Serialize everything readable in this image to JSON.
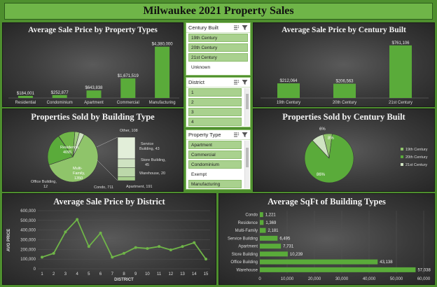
{
  "title": "Milwaukee 2021 Property Sales",
  "panels": {
    "p1_title": "Average Sale Price by Property Types",
    "p2_title": "Average Sale Price by Century Built",
    "p3_title": "Properties Sold by Building Type",
    "p4_title": "Properties Sold by Century Built",
    "p5_title": "Average Sale Price by District",
    "p6_title": "Average SqFt of Building Types"
  },
  "slicers": {
    "century": {
      "header": "Century Built",
      "items": [
        {
          "label": "19th Century",
          "selected": true
        },
        {
          "label": "20th Century",
          "selected": true
        },
        {
          "label": "21st Century",
          "selected": true
        },
        {
          "label": "Unknown",
          "selected": false
        }
      ]
    },
    "district": {
      "header": "District",
      "items": [
        {
          "label": "1",
          "selected": true
        },
        {
          "label": "2",
          "selected": true
        },
        {
          "label": "3",
          "selected": true
        },
        {
          "label": "4",
          "selected": true
        }
      ]
    },
    "property_type": {
      "header": "Property Type",
      "items": [
        {
          "label": "Apartment",
          "selected": true
        },
        {
          "label": "Commercial",
          "selected": true
        },
        {
          "label": "Condominium",
          "selected": true
        },
        {
          "label": "Exempt",
          "selected": false
        },
        {
          "label": "Manufacturing",
          "selected": true
        }
      ]
    }
  },
  "colors": {
    "accent": "#6fb548",
    "bar": "#5aab3a",
    "bar_light": "#a9d18e",
    "panel": "#3a3a3a",
    "text": "#f2f2f2"
  },
  "chart_data": [
    {
      "type": "bar",
      "title": "Average Sale Price by Property Types",
      "categories": [
        "Residential",
        "Condominium",
        "Apartment",
        "Commercial",
        "Manufacturing"
      ],
      "values": [
        184001,
        252877,
        643838,
        1671519,
        4380000
      ],
      "labels": [
        "$184,001",
        "$252,877",
        "$643,838",
        "$1,671,519",
        "$4,380,000"
      ]
    },
    {
      "type": "bar",
      "title": "Average Sale Price by Century Built",
      "categories": [
        "19th Century",
        "20th Century",
        "21st Century"
      ],
      "values": [
        212064,
        206563,
        761106
      ],
      "labels": [
        "$212,064",
        "$206,563",
        "$761,106"
      ]
    },
    {
      "type": "pie",
      "title": "Properties Sold by Building Type",
      "categories": [
        "Residence",
        "Multi-Family",
        "Office Building",
        "Condo",
        "Apartment",
        "Other",
        "Service Building",
        "Store Building",
        "Warehouse"
      ],
      "values": [
        4095,
        1350,
        12,
        711,
        191,
        108,
        43,
        45,
        20
      ],
      "labels": [
        "Residence, 4095",
        "Multi-Family, 1350",
        "Office Building, 12",
        "Condo, 711",
        "Apartment, 191",
        "Other, 108",
        "Service Building, 43",
        "Store Building, 45",
        "Warehouse, 20"
      ]
    },
    {
      "type": "pie",
      "title": "Properties Sold by Century Built",
      "categories": [
        "19th Century",
        "20th Century",
        "21st Century"
      ],
      "values": [
        6,
        86,
        8
      ],
      "labels": [
        "6%",
        "86%",
        "8%"
      ],
      "legend": "right"
    },
    {
      "type": "line",
      "title": "Average Sale Price by District",
      "x": [
        1,
        2,
        3,
        4,
        5,
        6,
        7,
        8,
        9,
        10,
        11,
        12,
        13,
        14,
        15
      ],
      "values": [
        120000,
        160000,
        380000,
        510000,
        230000,
        370000,
        120000,
        160000,
        220000,
        210000,
        230000,
        195000,
        230000,
        270000,
        100000
      ],
      "xlabel": "DISTRICT",
      "ylabel": "AVG PRICE",
      "ylim": [
        0,
        600000
      ],
      "yticks": [
        "0",
        "100,000",
        "200,000",
        "300,000",
        "400,000",
        "500,000",
        "600,000"
      ]
    },
    {
      "type": "bar",
      "orientation": "horizontal",
      "title": "Average SqFt of Building Types",
      "categories": [
        "Condo",
        "Residence",
        "Multi-Family",
        "Service Building",
        "Apartment",
        "Store Building",
        "Office Building",
        "Warehouse"
      ],
      "values": [
        1221,
        1369,
        2181,
        6495,
        7731,
        10239,
        43138,
        57038
      ],
      "labels": [
        "1,221",
        "1,369",
        "2,181",
        "6,495",
        "7,731",
        "10,239",
        "43,138",
        "57,038"
      ],
      "xlim": [
        0,
        60000
      ],
      "xticks": [
        "0",
        "10,000",
        "20,000",
        "30,000",
        "40,000",
        "50,000",
        "60,000"
      ]
    }
  ]
}
